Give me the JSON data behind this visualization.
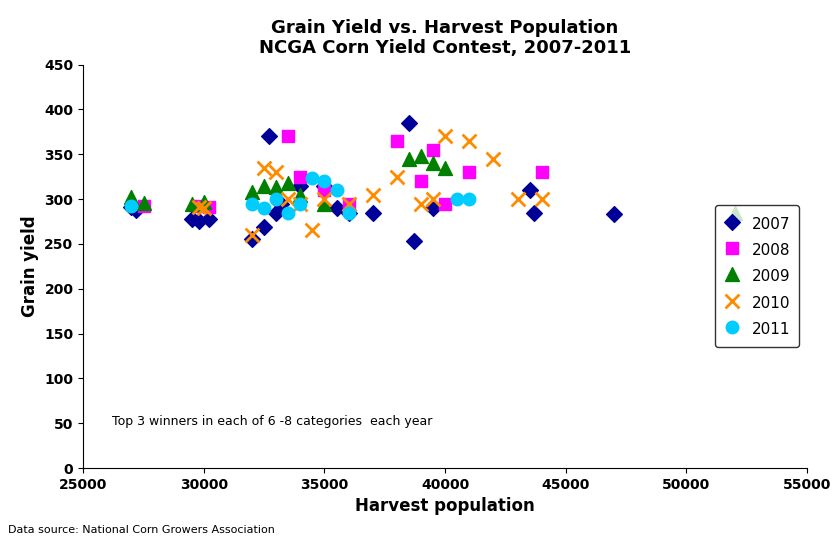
{
  "title_line1": "Grain Yield vs. Harvest Population",
  "title_line2": "NCGA Corn Yield Contest, 2007-2011",
  "xlabel": "Harvest population",
  "ylabel": "Grain yield",
  "xlim": [
    25000,
    55000
  ],
  "ylim": [
    0,
    450
  ],
  "xticks": [
    25000,
    30000,
    35000,
    40000,
    45000,
    50000,
    55000
  ],
  "yticks": [
    0,
    50,
    100,
    150,
    200,
    250,
    300,
    350,
    400,
    450
  ],
  "annotation": "Top 3 winners in each of 6 -8 categories  each year",
  "datasource": "Data source: National Corn Growers Association",
  "series": {
    "2007": {
      "color": "#000099",
      "marker": "D",
      "markersize": 8,
      "x": [
        27000,
        27200,
        29500,
        29800,
        30200,
        32000,
        32500,
        32700,
        33000,
        33200,
        34000,
        35000,
        35500,
        36000,
        37000,
        38500,
        38700,
        39500,
        43500,
        43700,
        47000
      ],
      "y": [
        291,
        288,
        278,
        275,
        278,
        255,
        269,
        370,
        285,
        295,
        315,
        315,
        290,
        285,
        285,
        385,
        253,
        290,
        310,
        285,
        283
      ]
    },
    "2008": {
      "color": "#FF00FF",
      "marker": "s",
      "markersize": 9,
      "x": [
        27500,
        29800,
        30200,
        33500,
        34000,
        35000,
        36000,
        38000,
        39000,
        39500,
        40000,
        41000,
        44000
      ],
      "y": [
        292,
        292,
        291,
        370,
        325,
        310,
        295,
        365,
        320,
        355,
        295,
        330,
        330
      ]
    },
    "2009": {
      "color": "#008000",
      "marker": "^",
      "markersize": 10,
      "x": [
        27000,
        27500,
        29500,
        30000,
        32000,
        32500,
        33000,
        33500,
        34000,
        35000,
        38500,
        39000,
        39500,
        40000,
        52000
      ],
      "y": [
        302,
        296,
        295,
        297,
        308,
        315,
        313,
        318,
        305,
        295,
        345,
        348,
        340,
        335,
        285
      ]
    },
    "2010": {
      "color": "#FF8C00",
      "marker": "x",
      "markersize": 10,
      "linewidths": 2.0,
      "x": [
        29800,
        30000,
        32000,
        32500,
        33000,
        33500,
        34000,
        34500,
        35000,
        36000,
        37000,
        38000,
        39000,
        39500,
        40000,
        41000,
        42000,
        43000,
        44000
      ],
      "y": [
        291,
        290,
        260,
        335,
        330,
        300,
        295,
        265,
        300,
        295,
        305,
        325,
        295,
        300,
        370,
        365,
        345,
        300,
        300
      ]
    },
    "2011": {
      "color": "#00CCFF",
      "marker": "o",
      "markersize": 9,
      "x": [
        27000,
        32000,
        32500,
        33000,
        33500,
        34000,
        34500,
        35000,
        35500,
        36000,
        40500,
        41000
      ],
      "y": [
        292,
        295,
        290,
        300,
        285,
        295,
        323,
        320,
        310,
        285,
        300,
        300
      ]
    }
  }
}
